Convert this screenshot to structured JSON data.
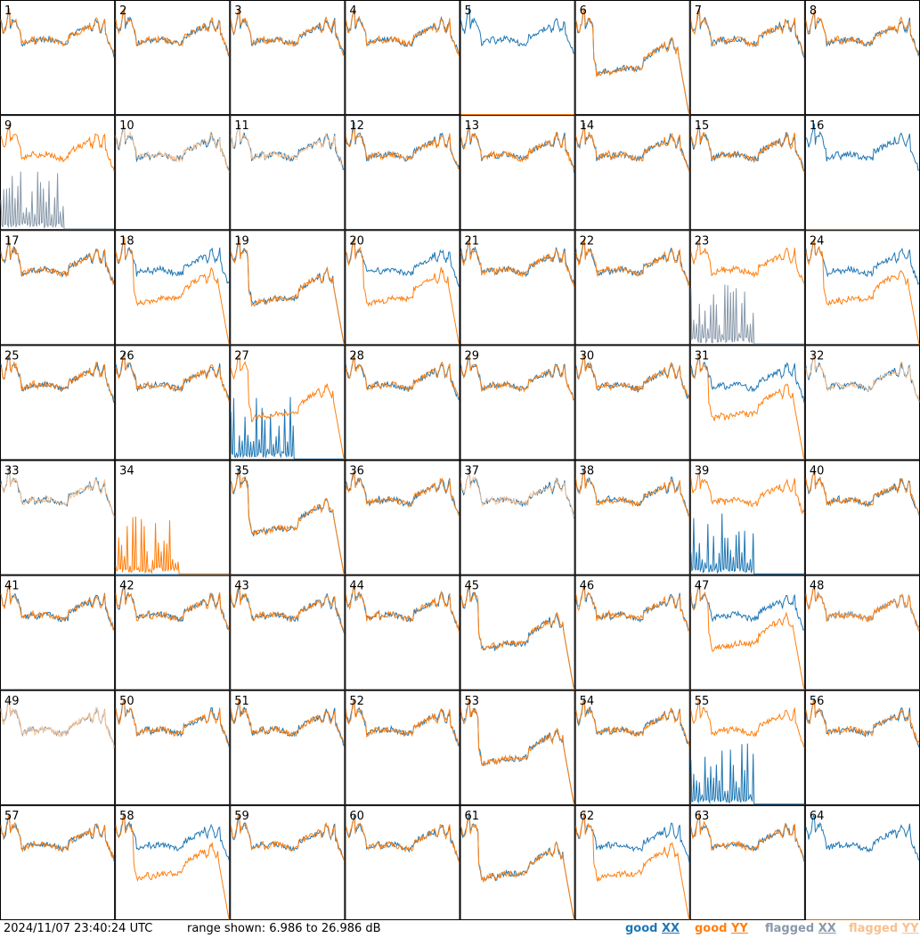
{
  "chart_data": {
    "type": "line",
    "panel_count": 64,
    "columns": 8,
    "rows": 8,
    "panel_labels": [
      "1",
      "2",
      "3",
      "4",
      "5",
      "6",
      "7",
      "8",
      "9",
      "10",
      "11",
      "12",
      "13",
      "14",
      "15",
      "16",
      "17",
      "18",
      "19",
      "20",
      "21",
      "22",
      "23",
      "24",
      "25",
      "26",
      "27",
      "28",
      "29",
      "30",
      "31",
      "32",
      "33",
      "34",
      "35",
      "36",
      "37",
      "38",
      "39",
      "40",
      "41",
      "42",
      "43",
      "44",
      "45",
      "46",
      "47",
      "48",
      "49",
      "50",
      "51",
      "52",
      "53",
      "54",
      "55",
      "56",
      "57",
      "58",
      "59",
      "60",
      "61",
      "62",
      "63",
      "64"
    ],
    "ylim": [
      6.986,
      26.986
    ],
    "yunit": "dB",
    "series": [
      {
        "name": "good XX",
        "color": "#1f77b4"
      },
      {
        "name": "good YY",
        "color": "#ff7f0e"
      },
      {
        "name": "flagged XX",
        "color": "#8899aa"
      },
      {
        "name": "flagged YY",
        "color": "#f9c08f"
      }
    ],
    "panel_status": {
      "xx_flagged": [
        9,
        23,
        48,
        49
      ],
      "yy_flagged": [
        10,
        11,
        32,
        33,
        37,
        49
      ],
      "yy_absent": [
        5,
        16,
        64
      ],
      "xx_absent": [
        34
      ],
      "xx_spiky": [
        27,
        39,
        55,
        9,
        23
      ],
      "yy_spiky": [
        34
      ],
      "yy_low": [
        6,
        18,
        19,
        20,
        24,
        27,
        31,
        35,
        45,
        47,
        53,
        58,
        61,
        62
      ],
      "xx_low": [
        6,
        19,
        27,
        35,
        45,
        53,
        61
      ]
    }
  },
  "footer": {
    "timestamp": "2024/11/07 23:40:24 UTC",
    "range_text": "range shown: 6.986 to 26.986 dB",
    "legend_good": "good",
    "legend_flagged": "flagged",
    "pol_xx": "XX",
    "pol_yy": "YY",
    "color_good_xx": "#1f77b4",
    "color_good_yy": "#ff7f0e",
    "color_flagged_xx": "#8899aa",
    "color_flagged_yy": "#f9c08f"
  }
}
